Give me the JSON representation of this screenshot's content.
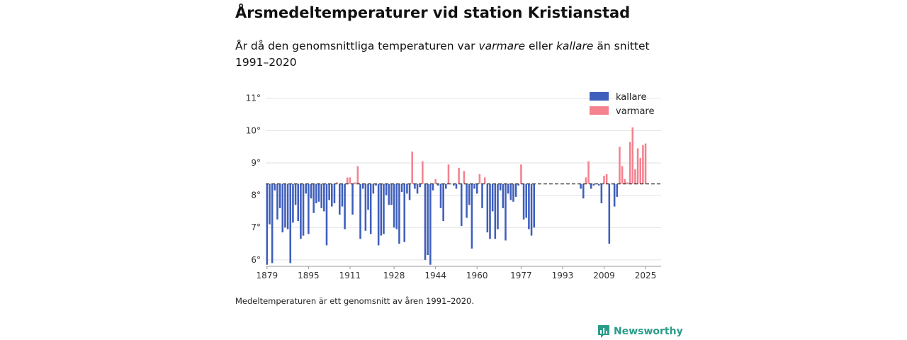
{
  "title": "Årsmedeltemperaturer vid station Kristianstad",
  "subtitle": {
    "part1": "År då den genomsnittliga temperaturen var ",
    "warm_word": "varmare",
    "part2": " eller ",
    "cold_word": "kallare",
    "part3": " än snittet 1991–2020"
  },
  "footnote": "Medeltemperaturen är ett genomsnitt av åren 1991–2020.",
  "brand": {
    "name": "Newsworthy",
    "icon": "newsworthy-logo-icon"
  },
  "colors": {
    "cold": "#3f5fbd",
    "warm": "#f4828f",
    "grid": "#e2e2e2",
    "baseline": "#333333",
    "brand": "#2b9c8a"
  },
  "chart_data": {
    "type": "bar",
    "title": "Årsmedeltemperaturer vid station Kristianstad",
    "xlabel": "",
    "ylabel": "",
    "baseline": 8.35,
    "ylim": [
      5.8,
      11.3
    ],
    "yticks": [
      6,
      7,
      8,
      9,
      10,
      11
    ],
    "ytick_labels": [
      "6°",
      "7°",
      "8°",
      "9°",
      "10°",
      "11°"
    ],
    "xlim": [
      1878.5,
      2031
    ],
    "xticks": [
      1879,
      1895,
      1911,
      1928,
      1944,
      1960,
      1977,
      1993,
      2009,
      2025
    ],
    "xtick_labels": [
      "1879",
      "1895",
      "1911",
      "1928",
      "1944",
      "1960",
      "1977",
      "1993",
      "2009",
      "2025"
    ],
    "legend": [
      {
        "key": "cold",
        "label": "kallare"
      },
      {
        "key": "warm",
        "label": "varmare"
      }
    ],
    "legend_position": "top-right",
    "years": [
      1879,
      1880,
      1881,
      1882,
      1883,
      1884,
      1885,
      1886,
      1887,
      1888,
      1889,
      1890,
      1891,
      1892,
      1893,
      1894,
      1895,
      1896,
      1897,
      1898,
      1899,
      1900,
      1901,
      1902,
      1903,
      1904,
      1905,
      1906,
      1907,
      1908,
      1909,
      1910,
      1911,
      1912,
      1913,
      1914,
      1915,
      1916,
      1917,
      1918,
      1919,
      1920,
      1921,
      1922,
      1923,
      1924,
      1925,
      1926,
      1927,
      1928,
      1929,
      1930,
      1931,
      1932,
      1933,
      1934,
      1935,
      1936,
      1937,
      1938,
      1939,
      1940,
      1941,
      1942,
      1943,
      1944,
      1945,
      1946,
      1947,
      1948,
      1949,
      1950,
      1951,
      1952,
      1953,
      1954,
      1955,
      1956,
      1957,
      1958,
      1959,
      1960,
      1961,
      1962,
      1963,
      1964,
      1965,
      1966,
      1967,
      1968,
      1969,
      1970,
      1971,
      1972,
      1973,
      1974,
      1975,
      1976,
      1977,
      1978,
      1979,
      1980,
      1981,
      1982,
      2000,
      2001,
      2002,
      2003,
      2004,
      2005,
      2006,
      2007,
      2008,
      2009,
      2010,
      2011,
      2012,
      2013,
      2014,
      2015,
      2016,
      2017,
      2018,
      2019,
      2020,
      2021,
      2022,
      2023,
      2024,
      2025
    ],
    "values": [
      5.85,
      7.1,
      5.9,
      8.15,
      7.25,
      7.6,
      6.85,
      7.0,
      6.95,
      5.9,
      7.15,
      7.7,
      7.2,
      6.65,
      6.75,
      8.05,
      6.8,
      7.9,
      7.45,
      7.75,
      7.8,
      7.6,
      7.5,
      6.45,
      7.85,
      7.65,
      7.75,
      8.4,
      7.4,
      7.65,
      6.95,
      8.55,
      8.55,
      7.4,
      8.4,
      8.9,
      6.65,
      8.2,
      6.9,
      7.55,
      6.8,
      8.05,
      8.3,
      6.45,
      6.75,
      6.8,
      8.0,
      7.7,
      7.7,
      7.0,
      6.95,
      6.5,
      8.1,
      6.55,
      8.05,
      7.85,
      9.35,
      8.2,
      8.05,
      8.25,
      9.05,
      6.0,
      6.15,
      5.85,
      8.15,
      8.5,
      8.3,
      7.6,
      7.2,
      8.2,
      8.95,
      8.35,
      8.3,
      8.2,
      8.85,
      7.05,
      8.75,
      7.3,
      7.7,
      6.35,
      8.2,
      8.05,
      8.65,
      7.6,
      8.55,
      6.85,
      6.65,
      7.5,
      6.65,
      6.95,
      8.15,
      7.6,
      6.6,
      8.05,
      7.85,
      7.8,
      7.95,
      8.3,
      8.95,
      7.25,
      7.3,
      6.95,
      6.75,
      7.0,
      8.2,
      7.9,
      8.55,
      9.05,
      8.2,
      8.3,
      8.35,
      8.3,
      7.75,
      8.6,
      8.65,
      6.5,
      8.35,
      7.65,
      7.95,
      9.5,
      8.9,
      8.5,
      8.4,
      9.65,
      10.1,
      8.8,
      9.45,
      9.15,
      9.55,
      9.6
    ]
  }
}
